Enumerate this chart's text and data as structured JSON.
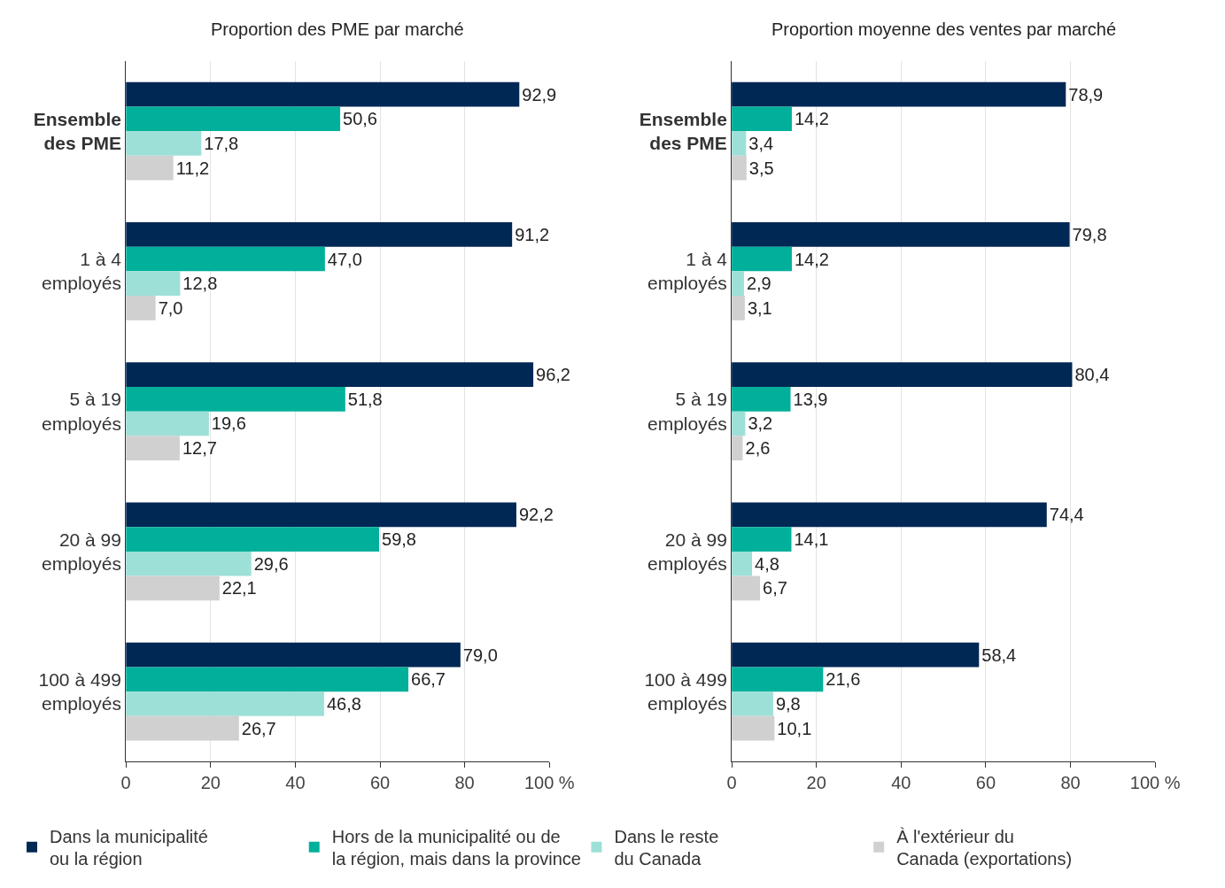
{
  "chart_data": [
    {
      "type": "bar",
      "orientation": "horizontal",
      "title": "Proportion des PME par marché",
      "categories": [
        "Ensemble des PME",
        "1 à 4 employés",
        "5 à 19 employés",
        "20 à 99 employés",
        "100 à 499 employés"
      ],
      "series": [
        {
          "name": "Dans la municipalité ou la région",
          "color": "#002855",
          "values": [
            92.9,
            91.2,
            96.2,
            92.2,
            79.0
          ],
          "value_labels": [
            "92,9",
            "91,2",
            "96,2",
            "92,2",
            "79,0"
          ]
        },
        {
          "name": "Hors de la municipalité ou de la région, mais dans la province",
          "color": "#00b09b",
          "values": [
            50.6,
            47.0,
            51.8,
            59.8,
            66.7
          ],
          "value_labels": [
            "50,6",
            "47,0",
            "51,8",
            "59,8",
            "66,7"
          ]
        },
        {
          "name": "Dans le reste du Canada",
          "color": "#9de0d7",
          "values": [
            17.8,
            12.8,
            19.6,
            29.6,
            46.8
          ],
          "value_labels": [
            "17,8",
            "12,8",
            "19,6",
            "29,6",
            "46,8"
          ]
        },
        {
          "name": "À l'extérieur du Canada (exportations)",
          "color": "#d0d0d0",
          "values": [
            11.2,
            7.0,
            12.7,
            22.1,
            26.7
          ],
          "value_labels": [
            "11,2",
            "7,0",
            "12,7",
            "22,1",
            "26,7"
          ]
        }
      ],
      "xlim": [
        0,
        100
      ],
      "xticks": [
        0,
        20,
        40,
        60,
        80,
        {
          "value": 100,
          "label": "100 %"
        }
      ],
      "grid": "x",
      "legend": "bottom"
    },
    {
      "type": "bar",
      "orientation": "horizontal",
      "title": "Proportion moyenne des ventes par marché",
      "categories": [
        "Ensemble des PME",
        "1 à 4 employés",
        "5 à 19 employés",
        "20 à 99 employés",
        "100 à 499 employés"
      ],
      "series": [
        {
          "color": "#002855",
          "values": [
            78.9,
            79.8,
            80.4,
            74.4,
            58.4
          ],
          "value_labels": [
            "78,9",
            "79,8",
            "80,4",
            "74,4",
            "58,4"
          ]
        },
        {
          "color": "#00b09b",
          "values": [
            14.2,
            14.2,
            13.9,
            14.1,
            21.6
          ],
          "value_labels": [
            "14,2",
            "14,2",
            "13,9",
            "14,1",
            "21,6"
          ]
        },
        {
          "color": "#9de0d7",
          "values": [
            3.4,
            2.9,
            3.2,
            4.8,
            9.8
          ],
          "value_labels": [
            "3,4",
            "2,9",
            "3,2",
            "4,8",
            "9,8"
          ]
        },
        {
          "color": "#d0d0d0",
          "values": [
            3.5,
            3.1,
            2.6,
            6.7,
            10.1
          ],
          "value_labels": [
            "3,5",
            "3,1",
            "2,6",
            "6,7",
            "10,1"
          ]
        }
      ],
      "xlim": [
        0,
        100
      ],
      "xticks": [
        0,
        20,
        40,
        60,
        80,
        {
          "value": 100,
          "label": "100 %"
        }
      ],
      "grid": "x"
    }
  ]
}
